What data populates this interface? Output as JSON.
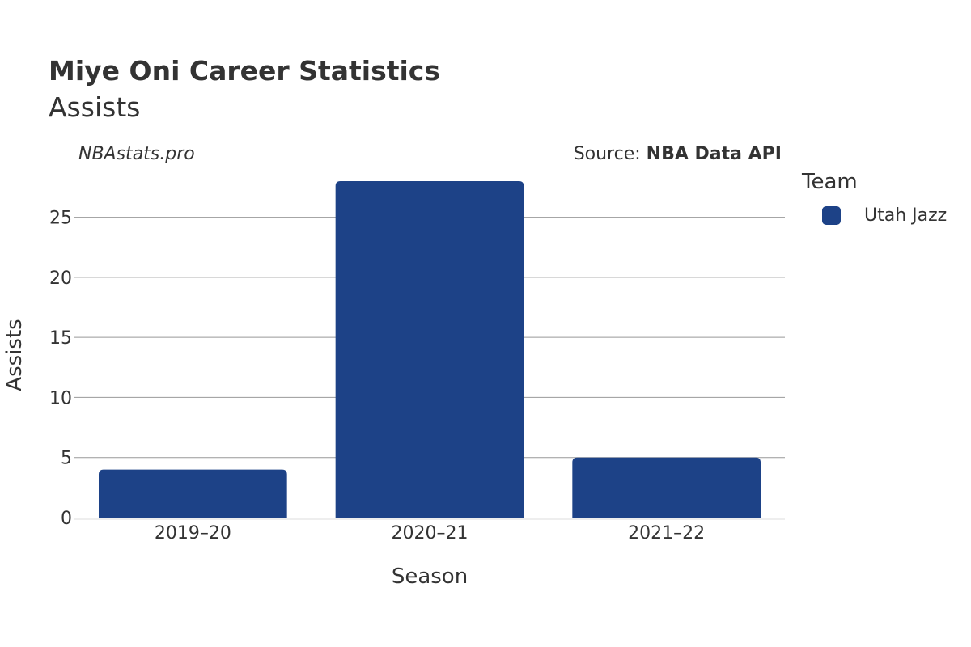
{
  "header": {
    "player_name": "Miye Oni",
    "title_rest": "Career Statistics",
    "subtitle": "Assists"
  },
  "watermark": "NBAstats.pro",
  "source": {
    "prefix": "Source: ",
    "name": "NBA Data API"
  },
  "legend": {
    "title": "Team",
    "items": [
      {
        "label": "Utah Jazz",
        "color": "#1d4287"
      }
    ]
  },
  "chart_data": {
    "type": "bar",
    "categories": [
      "2019–20",
      "2020–21",
      "2021–22"
    ],
    "series": [
      {
        "name": "Utah Jazz",
        "values": [
          4,
          28,
          5
        ],
        "color": "#1d4287"
      }
    ],
    "xlabel": "Season",
    "ylabel": "Assists",
    "ylim": [
      0,
      28
    ],
    "yticks": [
      0,
      5,
      10,
      15,
      20,
      25
    ],
    "grid": true,
    "legend_position": "right"
  }
}
